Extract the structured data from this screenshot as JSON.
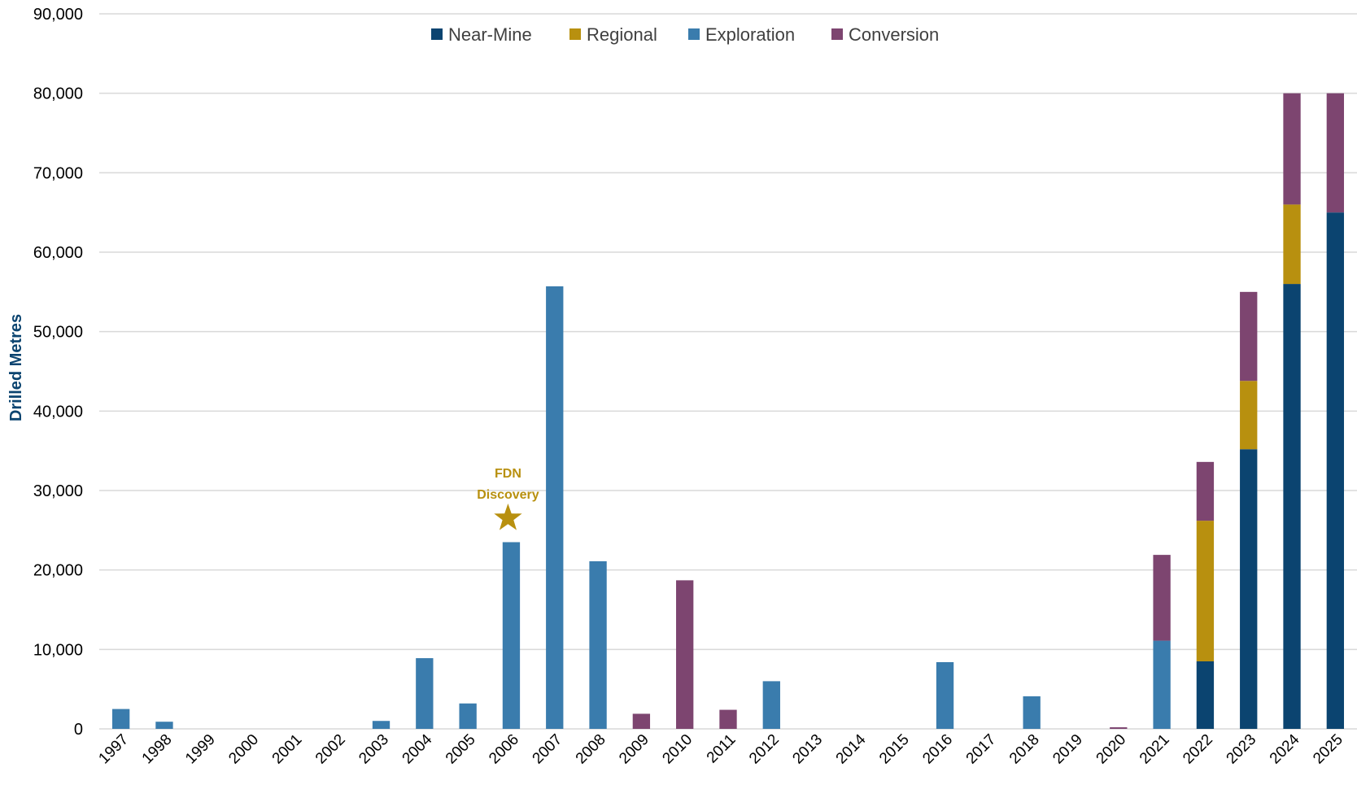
{
  "chart_data": {
    "type": "bar",
    "stacked": true,
    "title": "",
    "xlabel": "",
    "ylabel": "Drilled Metres",
    "ylim": [
      0,
      90000
    ],
    "yticks": [
      0,
      10000,
      20000,
      30000,
      40000,
      50000,
      60000,
      70000,
      80000,
      90000
    ],
    "ytick_labels": [
      "0",
      "10,000",
      "20,000",
      "30,000",
      "40,000",
      "50,000",
      "60,000",
      "70,000",
      "80,000",
      "90,000"
    ],
    "grid": "horizontal",
    "legend_position": "top-center",
    "categories": [
      "1997",
      "1998",
      "1999",
      "2000",
      "2001",
      "2002",
      "2003",
      "2004",
      "2005",
      "2006",
      "2007",
      "2008",
      "2009",
      "2010",
      "2011",
      "2012",
      "2013",
      "2014",
      "2015",
      "2016",
      "2017",
      "2018",
      "2019",
      "2020",
      "2021",
      "2022",
      "2023",
      "2024",
      "2025"
    ],
    "series": [
      {
        "name": "Near-Mine",
        "color": "#0B4470",
        "values": [
          0,
          0,
          0,
          0,
          0,
          0,
          0,
          0,
          0,
          0,
          0,
          0,
          0,
          0,
          0,
          0,
          0,
          0,
          0,
          0,
          0,
          0,
          0,
          0,
          0,
          8500,
          35200,
          56000,
          65000
        ]
      },
      {
        "name": "Regional",
        "color": "#B8900F",
        "values": [
          0,
          0,
          0,
          0,
          0,
          0,
          0,
          0,
          0,
          0,
          0,
          0,
          0,
          0,
          0,
          0,
          0,
          0,
          0,
          0,
          0,
          0,
          0,
          0,
          0,
          17700,
          8600,
          10000,
          0
        ]
      },
      {
        "name": "Exploration",
        "color": "#3A7CAD",
        "values": [
          2500,
          900,
          0,
          0,
          0,
          0,
          1000,
          8900,
          3200,
          23500,
          55700,
          21100,
          0,
          0,
          0,
          6000,
          0,
          0,
          0,
          8400,
          0,
          4100,
          0,
          0,
          11100,
          0,
          0,
          0,
          0
        ]
      },
      {
        "name": "Conversion",
        "color": "#7D4570",
        "values": [
          0,
          0,
          0,
          0,
          0,
          0,
          0,
          0,
          0,
          0,
          0,
          0,
          1900,
          18700,
          2400,
          0,
          0,
          0,
          0,
          0,
          0,
          0,
          0,
          200,
          10800,
          7400,
          11200,
          14000,
          15000
        ]
      }
    ],
    "annotation": {
      "text_lines": [
        "FDN",
        "Discovery"
      ],
      "category": "2006",
      "color": "#B8900F",
      "marker": "star-icon"
    },
    "ylabel_color": "#0B4470",
    "grid_color": "#D9D9D9"
  }
}
